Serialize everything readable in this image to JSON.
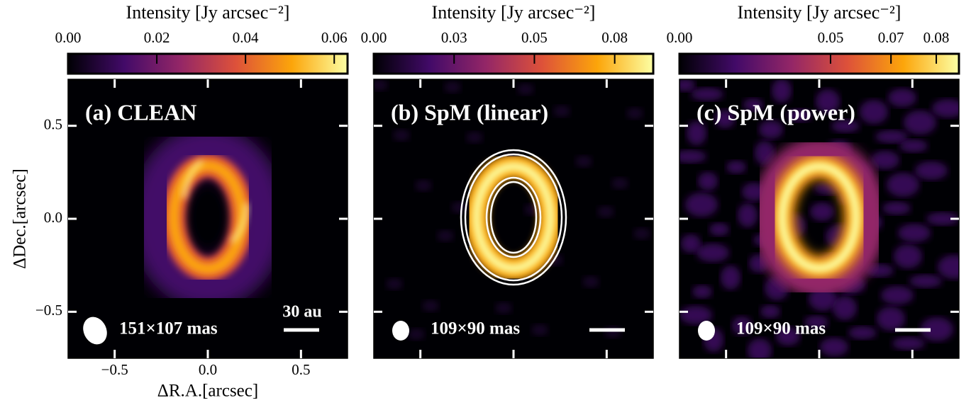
{
  "chart_data": [
    {
      "type": "image",
      "title": "Intensity [Jy arcsec⁻²]",
      "label": "(a) CLEAN",
      "beam": "151×107 mas",
      "scalebar": "30 au",
      "xlabel": "ΔR.A.[arcsec]",
      "ylabel": "ΔDec.[arcsec]",
      "xlim": [
        -0.75,
        0.75
      ],
      "ylim": [
        -0.75,
        0.75
      ],
      "xticks": [
        {
          "value": -0.5,
          "label": "−0.5"
        },
        {
          "value": 0,
          "label": "0.0"
        },
        0.5
      ],
      "yticks": [
        {
          "value": -0.5,
          "label": "−0.5"
        },
        {
          "value": 0,
          "label": "0.0"
        },
        0.5
      ],
      "clim": [
        0,
        0.063
      ],
      "cticks": [
        {
          "value": 0,
          "label": "0.00"
        },
        {
          "value": 0.02,
          "label": "0.02"
        },
        {
          "value": 0.04,
          "label": "0.04"
        },
        {
          "value": 0.06,
          "label": "0.06"
        }
      ],
      "colormap": [
        "#000004",
        "#420a68",
        "#932667",
        "#dd513a",
        "#fca50a",
        "#fcffa4"
      ]
    },
    {
      "type": "image",
      "title": "Intensity [Jy arcsec⁻²]",
      "label": "(b) SpM (linear)",
      "beam": "109×90 mas",
      "clim": [
        0,
        0.087
      ],
      "cticks": [
        {
          "value": 0,
          "label": "0.00"
        },
        {
          "value": 0.025,
          "label": "0.03"
        },
        {
          "value": 0.05,
          "label": "0.05"
        },
        {
          "value": 0.075,
          "label": "0.08"
        }
      ],
      "colormap": [
        "#000004",
        "#420a68",
        "#932667",
        "#dd513a",
        "#fca50a",
        "#fcffa4"
      ]
    },
    {
      "type": "image",
      "title": "Intensity [Jy arcsec⁻²]",
      "label": "(c) SpM (power)",
      "beam": "109×90 mas",
      "clim": [
        0,
        0.0925
      ],
      "cticks": [
        {
          "value": 0,
          "label": "0.00"
        },
        {
          "value": 0.05,
          "label": "0.05"
        },
        {
          "value": 0.07,
          "label": "0.07"
        },
        {
          "value": 0.085,
          "label": "0.08"
        }
      ],
      "colormap": [
        "#000004",
        "#420a68",
        "#932667",
        "#dd513a",
        "#fca50a",
        "#fcffa4"
      ]
    }
  ]
}
